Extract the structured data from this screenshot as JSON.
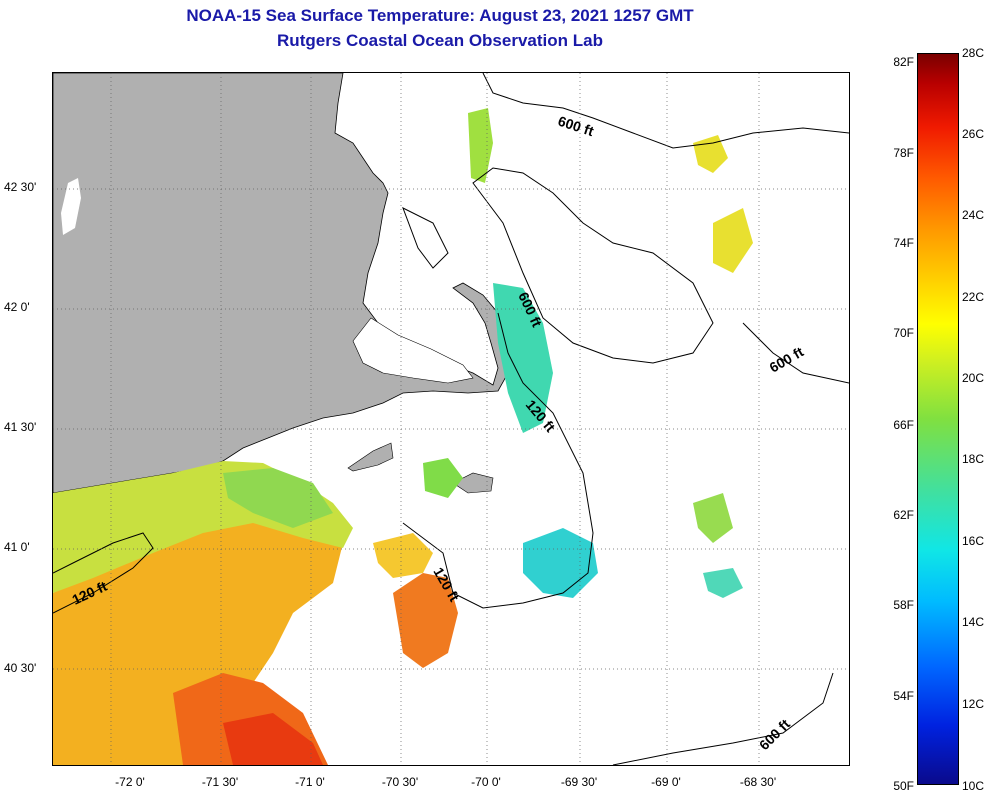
{
  "header": {
    "title": "NOAA-15 Sea Surface Temperature:  August 23, 2021 1257 GMT",
    "subtitle": "Rutgers Coastal Ocean Observation Lab"
  },
  "map": {
    "latitude_labels": [
      "42 30'",
      "42 0'",
      "41 30'",
      "41 0'",
      "40 30'"
    ],
    "longitude_labels": [
      "-72 0'",
      "-71 30'",
      "-71 0'",
      "-70 30'",
      "-70 0'",
      "-69 30'",
      "-69 0'",
      "-68 30'"
    ],
    "contour_labels": [
      "600 ft",
      "600 ft",
      "600 ft",
      "600 ft",
      "120 ft",
      "120 ft",
      "120 ft"
    ],
    "colors": {
      "land": "#b0b0b0",
      "frame": "#000000",
      "title": "#1a1aa8"
    }
  },
  "colorbar": {
    "fahrenheit_labels": [
      "82F",
      "78F",
      "74F",
      "70F",
      "66F",
      "62F",
      "58F",
      "54F",
      "50F"
    ],
    "celsius_labels": [
      "28C",
      "26C",
      "24C",
      "22C",
      "20C",
      "18C",
      "16C",
      "14C",
      "12C",
      "10C"
    ]
  }
}
